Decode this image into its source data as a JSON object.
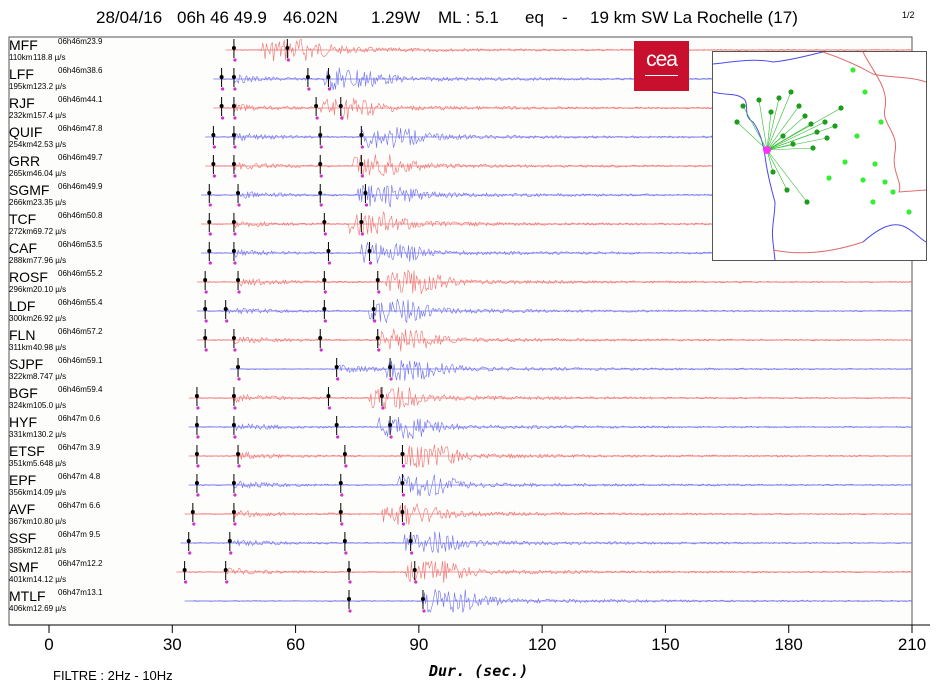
{
  "header": {
    "date": "28/04/16",
    "time": "06h 46 49.9",
    "lat": "46.02N",
    "lon": "1.29W",
    "magnitude": "ML : 5.1",
    "event_type": "eq",
    "separator": "-",
    "location": "19 km SW La Rochelle (17)",
    "page": "1/2"
  },
  "logo": {
    "text": "cea",
    "color": "#c8102e"
  },
  "footer": {
    "filter": "FILTRE : 2Hz - 10Hz"
  },
  "colors": {
    "red_trace": "#f07070",
    "blue_trace": "#6f6fef",
    "pick": "#cc33cc",
    "axis": "#000000"
  },
  "chart_data": {
    "type": "line",
    "title": "",
    "xlabel": "Dur.  (sec.)",
    "ylabel": "",
    "xlim": [
      0,
      210
    ],
    "xticks": [
      "0",
      "30",
      "60",
      "90",
      "120",
      "150",
      "180",
      "210"
    ],
    "grid": false,
    "series": [
      {
        "name": "MFF",
        "time": "06h46m23.9",
        "distance": "110km",
        "amplitude": "118.8 µ/s",
        "color": "red",
        "picks": [
          45,
          58
        ],
        "onset": 45,
        "peak": 58
      },
      {
        "name": "LFF",
        "time": "06h46m38.6",
        "distance": "195km",
        "amplitude": "123.2 µ/s",
        "color": "blue",
        "picks": [
          42,
          45,
          63,
          68
        ],
        "onset": 42,
        "peak": 73
      },
      {
        "name": "RJF",
        "time": "06h46m44.1",
        "distance": "232km",
        "amplitude": "157.4 µ/s",
        "color": "red",
        "picks": [
          42,
          45,
          65,
          71
        ],
        "onset": 42,
        "peak": 72
      },
      {
        "name": "QUIF",
        "time": "06h46m47.8",
        "distance": "254km",
        "amplitude": "42.53 µ/s",
        "color": "blue",
        "picks": [
          40,
          45,
          66,
          76
        ],
        "onset": 40,
        "peak": 82
      },
      {
        "name": "GRR",
        "time": "06h46m49.7",
        "distance": "265km",
        "amplitude": "46.04 µ/s",
        "color": "red",
        "picks": [
          40,
          45,
          66,
          76
        ],
        "onset": 40,
        "peak": 80
      },
      {
        "name": "SGMF",
        "time": "06h46m49.9",
        "distance": "266km",
        "amplitude": "23.35 µ/s",
        "color": "blue",
        "picks": [
          39,
          46,
          66,
          77
        ],
        "onset": 39,
        "peak": 81
      },
      {
        "name": "TCF",
        "time": "06h46m50.8",
        "distance": "272km",
        "amplitude": "69.72 µ/s",
        "color": "red",
        "picks": [
          39,
          45,
          67,
          76
        ],
        "onset": 39,
        "peak": 79
      },
      {
        "name": "CAF",
        "time": "06h46m53.5",
        "distance": "288km",
        "amplitude": "77.96 µ/s",
        "color": "blue",
        "picks": [
          39,
          45,
          68,
          78
        ],
        "onset": 39,
        "peak": 82
      },
      {
        "name": "ROSF",
        "time": "06h46m55.2",
        "distance": "296km",
        "amplitude": "20.10 µ/s",
        "color": "red",
        "picks": [
          38,
          46,
          67,
          80
        ],
        "onset": 38,
        "peak": 88
      },
      {
        "name": "LDF",
        "time": "06h46m55.4",
        "distance": "300km",
        "amplitude": "26.92 µ/s",
        "color": "blue",
        "picks": [
          38,
          43,
          67,
          79
        ],
        "onset": 38,
        "peak": 84
      },
      {
        "name": "FLN",
        "time": "06h46m57.2",
        "distance": "311km",
        "amplitude": "40.98 µ/s",
        "color": "red",
        "picks": [
          38,
          45,
          66,
          80
        ],
        "onset": 38,
        "peak": 86
      },
      {
        "name": "SJPF",
        "time": "06h46m59.1",
        "distance": "322km",
        "amplitude": "8.747 µ/s",
        "color": "blue",
        "picks": [
          46,
          70,
          83
        ],
        "onset": 46,
        "peak": 88
      },
      {
        "name": "BGF",
        "time": "06h46m59.4",
        "distance": "324km",
        "amplitude": "105.0 µ/s",
        "color": "red",
        "picks": [
          36,
          45,
          68,
          81
        ],
        "onset": 36,
        "peak": 84
      },
      {
        "name": "HYF",
        "time": "06h47m 0.6",
        "distance": "331km",
        "amplitude": "130.2 µ/s",
        "color": "blue",
        "picks": [
          36,
          45,
          70,
          83
        ],
        "onset": 36,
        "peak": 86
      },
      {
        "name": "ETSF",
        "time": "06h47m 3.9",
        "distance": "351km",
        "amplitude": "5.648 µ/s",
        "color": "red",
        "picks": [
          36,
          46,
          72,
          86
        ],
        "onset": 36,
        "peak": 92
      },
      {
        "name": "EPF",
        "time": "06h47m 4.8",
        "distance": "356km",
        "amplitude": "14.09 µ/s",
        "color": "blue",
        "picks": [
          36,
          45,
          71,
          86
        ],
        "onset": 36,
        "peak": 91
      },
      {
        "name": "AVF",
        "time": "06h47m 6.6",
        "distance": "367km",
        "amplitude": "10.80 µ/s",
        "color": "red",
        "picks": [
          35,
          45,
          71,
          86
        ],
        "onset": 35,
        "peak": 87
      },
      {
        "name": "SSF",
        "time": "06h47m 9.5",
        "distance": "385km",
        "amplitude": "12.81 µ/s",
        "color": "blue",
        "picks": [
          34,
          44,
          72,
          88
        ],
        "onset": 34,
        "peak": 92
      },
      {
        "name": "SMF",
        "time": "06h47m12.2",
        "distance": "401km",
        "amplitude": "14.12 µ/s",
        "color": "red",
        "picks": [
          33,
          43,
          73,
          89
        ],
        "onset": 33,
        "peak": 93
      },
      {
        "name": "MTLF",
        "time": "06h47m13.1",
        "distance": "406km",
        "amplitude": "12.69 µ/s",
        "color": "blue",
        "picks": [
          73,
          91
        ],
        "onset": 35,
        "peak": 97
      }
    ]
  }
}
